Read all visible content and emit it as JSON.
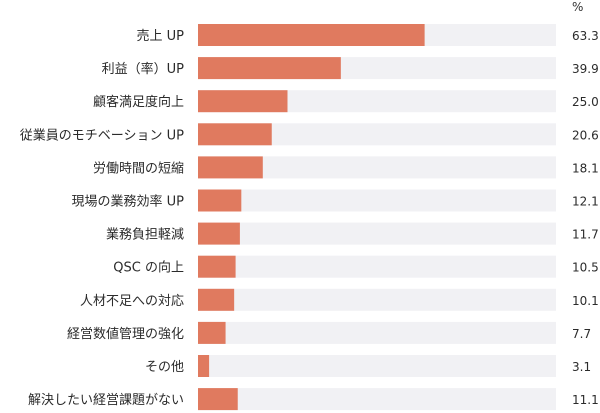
{
  "chart_data": {
    "type": "bar",
    "orientation": "horizontal",
    "unit": "%",
    "categories": [
      "売上 UP",
      "利益（率）UP",
      "顧客満足度向上",
      "従業員のモチベーション UP",
      "労働時間の短縮",
      "現場の業務効率 UP",
      "業務負担軽減",
      "QSC の向上",
      "人材不足への対応",
      "経営数値管理の強化",
      "その他",
      "解決したい経営課題がない"
    ],
    "values": [
      63.3,
      39.9,
      25.0,
      20.6,
      18.1,
      12.1,
      11.7,
      10.5,
      10.1,
      7.7,
      3.1,
      11.1
    ],
    "value_labels": [
      "63.3",
      "39.9",
      "25.0",
      "20.6",
      "18.1",
      "12.1",
      "11.7",
      "10.5",
      "10.1",
      "7.7",
      "3.1",
      "11.1"
    ],
    "xlim": [
      0,
      100
    ],
    "grid": false,
    "legend": "none",
    "colors": {
      "bar": "#e07a5f",
      "track": "#f1f1f4"
    }
  }
}
